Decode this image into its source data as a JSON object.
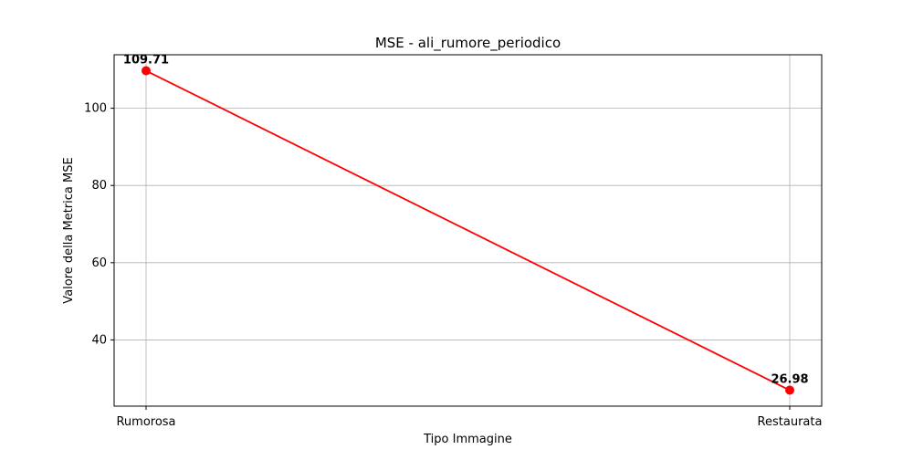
{
  "chart_data": {
    "type": "line",
    "title": "MSE - ali_rumore_periodico",
    "xlabel": "Tipo Immagine",
    "ylabel": "Valore della Metrica MSE",
    "categories": [
      "Rumorosa",
      "Restaurata"
    ],
    "values": [
      109.71,
      26.98
    ],
    "data_labels": [
      "109.71",
      "26.98"
    ],
    "ylim": [
      22.85,
      113.85
    ],
    "yticks": [
      40,
      60,
      80,
      100
    ],
    "ytick_labels": [
      "40",
      "60",
      "80",
      "100"
    ],
    "grid": true,
    "legend": "none",
    "line_color": "#ff0000",
    "marker_color": "#ff0000",
    "marker": "circle"
  }
}
